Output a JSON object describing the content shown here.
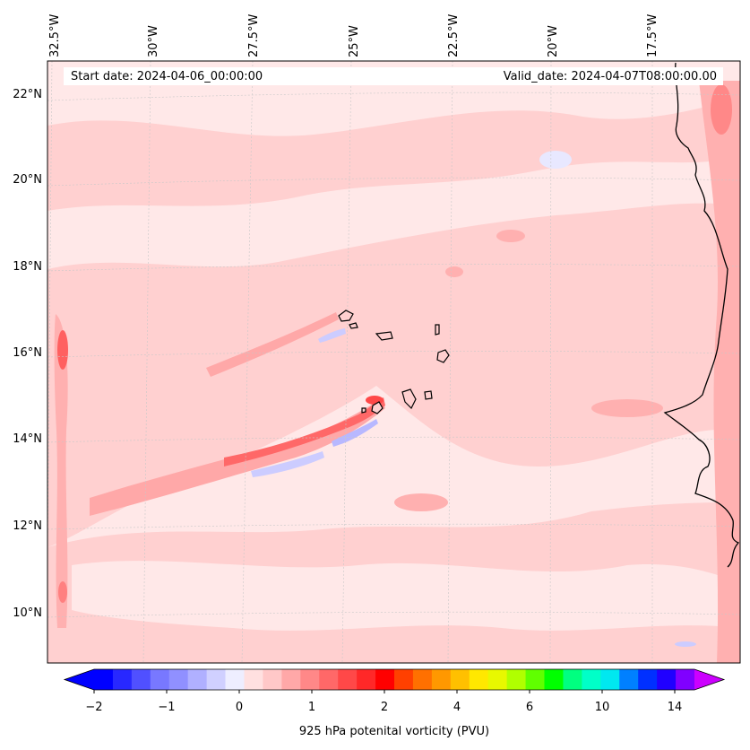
{
  "header": {
    "start_date": "Start date: 2024-04-06_00:00:00",
    "valid_date": "Valid_date: 2024-04-07T08:00:00.00"
  },
  "map": {
    "lon_labels": [
      "32.5°W",
      "30°W",
      "27.5°W",
      "25°W",
      "22.5°W",
      "20°W",
      "17.5°W"
    ],
    "lat_labels": [
      "22°N",
      "20°N",
      "18°N",
      "16°N",
      "14°N",
      "12°N",
      "10°N"
    ],
    "colors": {
      "background_low": "#ffe8e8",
      "light_pink": "#ffd0d0",
      "mid_pink": "#ffb0b0",
      "strong_red": "#ff6060",
      "light_blue": "#e8e8ff",
      "mid_blue": "#b0b0ff",
      "coast": "#000000"
    }
  },
  "colorbar": {
    "label": "925 hPa potenital vorticity (PVU)",
    "ticks": [
      "−2",
      "−1",
      "0",
      "1",
      "2",
      "4",
      "6",
      "10",
      "14"
    ],
    "colors": [
      "#0000ff",
      "#2828ff",
      "#5050ff",
      "#7878ff",
      "#9090ff",
      "#b0b0ff",
      "#d0d0ff",
      "#eeeeff",
      "#ffe0e0",
      "#ffc8c8",
      "#ffa8a8",
      "#ff8888",
      "#ff6868",
      "#ff4848",
      "#ff2828",
      "#ff0000",
      "#ff4000",
      "#ff7000",
      "#ff9800",
      "#ffc000",
      "#ffe800",
      "#e8f800",
      "#b0ff00",
      "#60ff00",
      "#00ff00",
      "#00ff80",
      "#00ffc8",
      "#00e8f0",
      "#0080ff",
      "#0030ff",
      "#2000ff",
      "#8000ff"
    ],
    "extend_min_color": "#0000ff",
    "extend_max_color": "#cc00ff"
  }
}
